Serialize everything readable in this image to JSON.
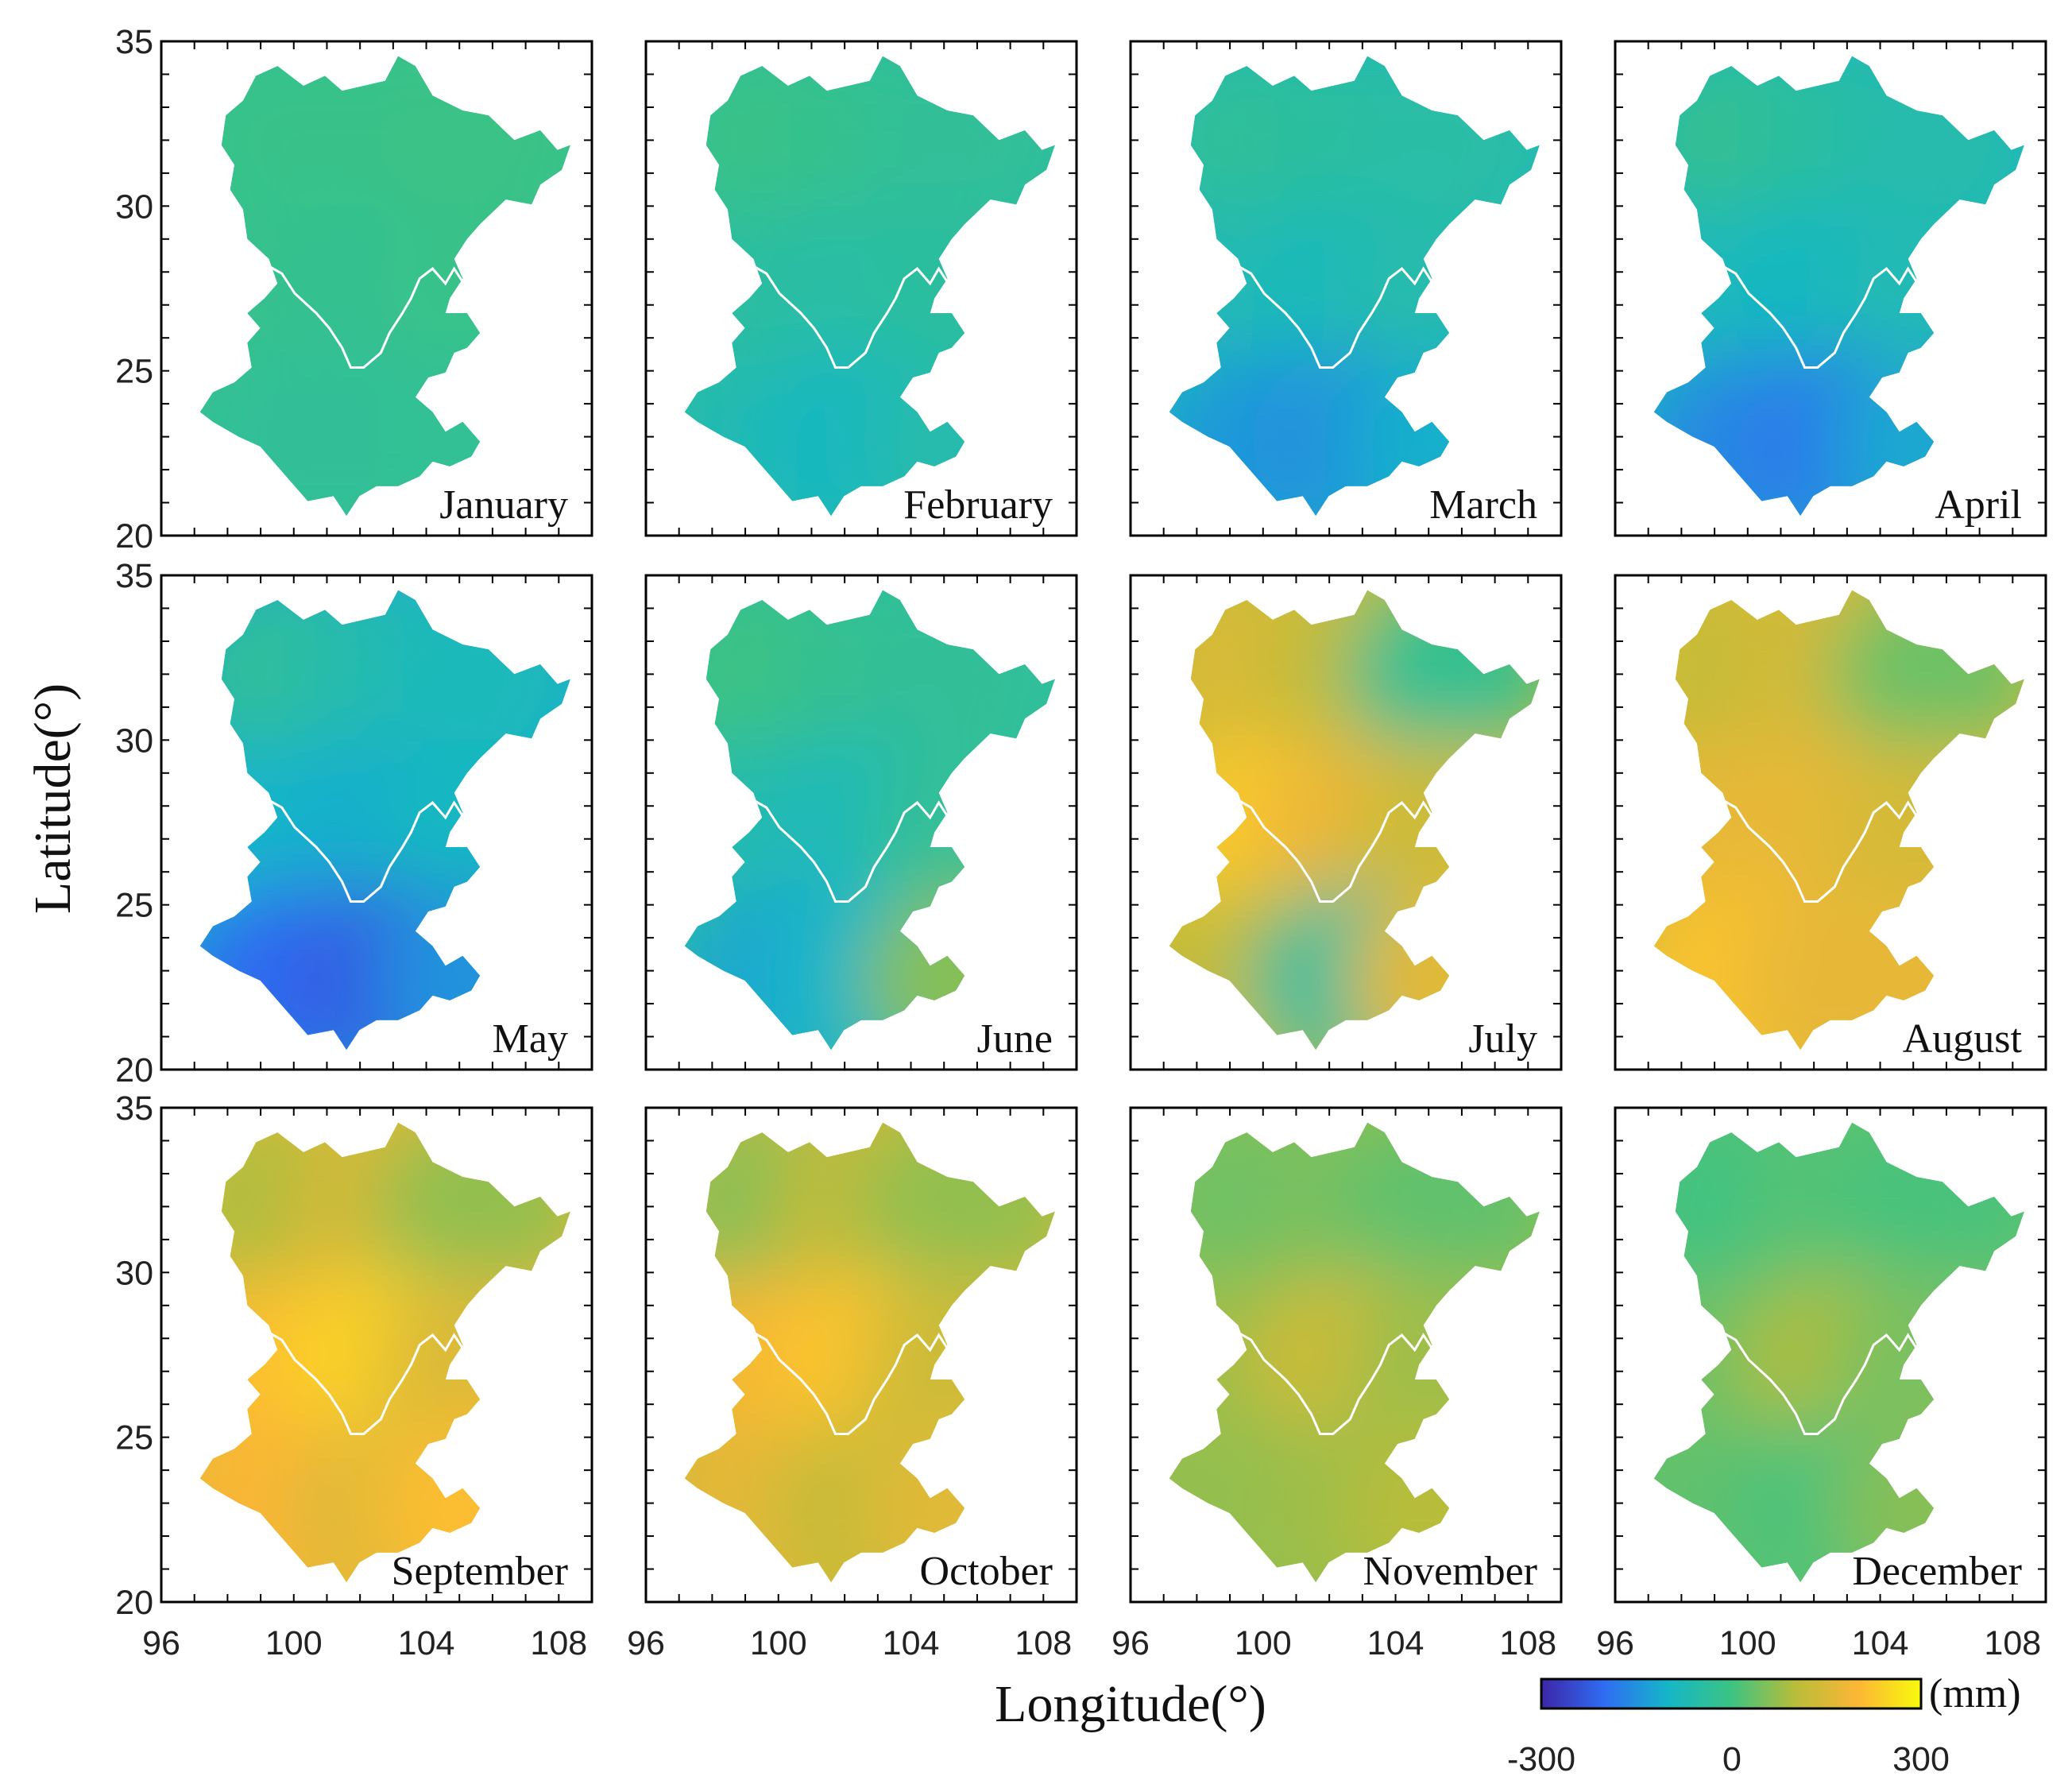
{
  "figure": {
    "x_axis_title": "Longitude(°)",
    "y_axis_title": "Latitude(°)",
    "x_ticks": [
      "96",
      "100",
      "104",
      "108"
    ],
    "y_ticks": [
      "20",
      "25",
      "30",
      "35"
    ]
  },
  "colorbar": {
    "unit": "(mm)",
    "min_label": "-300",
    "mid_label": "0",
    "max_label": "300",
    "colors": [
      "#3d26a8",
      "#2f6df2",
      "#15b6c8",
      "#3cc383",
      "#b7bd3a",
      "#fcb636",
      "#f8fa0d"
    ]
  },
  "chart_data": {
    "type": "heatmap",
    "title": "",
    "xlabel": "Longitude(°)",
    "ylabel": "Latitude(°)",
    "xlim": [
      96,
      109
    ],
    "ylim": [
      20,
      35
    ],
    "value_range_mm": [
      -300,
      300
    ],
    "panels": [
      {
        "month": "January",
        "anomaly_mm": [
          [
            -10,
            -10,
            -5
          ],
          [
            -15,
            -20,
            -10
          ],
          [
            -30,
            -30,
            -25
          ]
        ]
      },
      {
        "month": "February",
        "anomaly_mm": [
          [
            -5,
            -15,
            -30
          ],
          [
            -40,
            -50,
            -40
          ],
          [
            -70,
            -90,
            -60
          ]
        ]
      },
      {
        "month": "March",
        "anomaly_mm": [
          [
            -30,
            -40,
            -50
          ],
          [
            -70,
            -80,
            -60
          ],
          [
            -140,
            -150,
            -110
          ]
        ]
      },
      {
        "month": "April",
        "anomaly_mm": [
          [
            -20,
            -40,
            -60
          ],
          [
            -80,
            -90,
            -70
          ],
          [
            -160,
            -180,
            -120
          ]
        ]
      },
      {
        "month": "May",
        "anomaly_mm": [
          [
            -30,
            -60,
            -80
          ],
          [
            -100,
            -110,
            -90
          ],
          [
            -200,
            -220,
            -150
          ]
        ]
      },
      {
        "month": "June",
        "anomaly_mm": [
          [
            0,
            -20,
            -30
          ],
          [
            -60,
            -80,
            -30
          ],
          [
            -120,
            -100,
            60
          ]
        ]
      },
      {
        "month": "July",
        "anomaly_mm": [
          [
            150,
            120,
            -20
          ],
          [
            230,
            180,
            130
          ],
          [
            120,
            -40,
            160
          ]
        ]
      },
      {
        "month": "August",
        "anomaly_mm": [
          [
            120,
            140,
            40
          ],
          [
            170,
            170,
            140
          ],
          [
            220,
            170,
            170
          ]
        ]
      },
      {
        "month": "September",
        "anomaly_mm": [
          [
            90,
            140,
            70
          ],
          [
            210,
            240,
            150
          ],
          [
            200,
            160,
            210
          ]
        ]
      },
      {
        "month": "October",
        "anomaly_mm": [
          [
            60,
            110,
            70
          ],
          [
            190,
            220,
            130
          ],
          [
            170,
            120,
            160
          ]
        ]
      },
      {
        "month": "November",
        "anomaly_mm": [
          [
            40,
            50,
            30
          ],
          [
            80,
            130,
            80
          ],
          [
            70,
            80,
            100
          ]
        ]
      },
      {
        "month": "December",
        "anomaly_mm": [
          [
            0,
            20,
            10
          ],
          [
            40,
            90,
            50
          ],
          [
            30,
            10,
            60
          ]
        ]
      }
    ]
  }
}
